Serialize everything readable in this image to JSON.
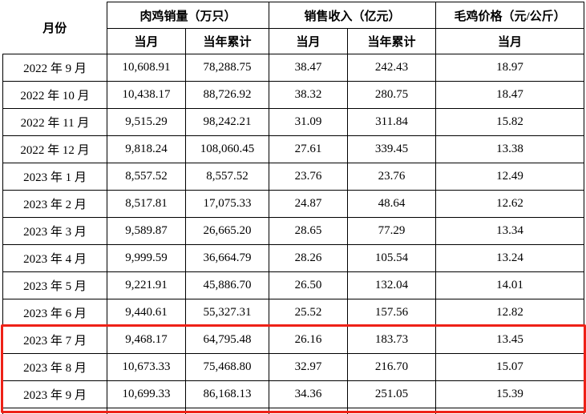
{
  "table": {
    "highlight_color": "#ee2117",
    "headers": {
      "month": "月份",
      "volume_group": "肉鸡销量（万只）",
      "revenue_group": "销售收入（亿元）",
      "price_group": "毛鸡价格（元/公斤）",
      "current_month": "当月",
      "ytd": "当年累计"
    },
    "rows": [
      {
        "month": "2022 年 9 月",
        "volume_month": "10,608.91",
        "volume_ytd": "78,288.75",
        "revenue_month": "38.47",
        "revenue_ytd": "242.43",
        "price": "18.97",
        "highlighted": false
      },
      {
        "month": "2022 年 10 月",
        "volume_month": "10,438.17",
        "volume_ytd": "88,726.92",
        "revenue_month": "38.32",
        "revenue_ytd": "280.75",
        "price": "18.47",
        "highlighted": false
      },
      {
        "month": "2022 年 11 月",
        "volume_month": "9,515.29",
        "volume_ytd": "98,242.21",
        "revenue_month": "31.09",
        "revenue_ytd": "311.84",
        "price": "15.82",
        "highlighted": false
      },
      {
        "month": "2022 年 12 月",
        "volume_month": "9,818.24",
        "volume_ytd": "108,060.45",
        "revenue_month": "27.61",
        "revenue_ytd": "339.45",
        "price": "13.38",
        "highlighted": false
      },
      {
        "month": "2023 年 1 月",
        "volume_month": "8,557.52",
        "volume_ytd": "8,557.52",
        "revenue_month": "23.76",
        "revenue_ytd": "23.76",
        "price": "12.49",
        "highlighted": false
      },
      {
        "month": "2023 年 2 月",
        "volume_month": "8,517.81",
        "volume_ytd": "17,075.33",
        "revenue_month": "24.87",
        "revenue_ytd": "48.64",
        "price": "12.62",
        "highlighted": false
      },
      {
        "month": "2023 年 3 月",
        "volume_month": "9,589.87",
        "volume_ytd": "26,665.20",
        "revenue_month": "28.65",
        "revenue_ytd": "77.29",
        "price": "13.34",
        "highlighted": false
      },
      {
        "month": "2023 年 4 月",
        "volume_month": "9,999.59",
        "volume_ytd": "36,664.79",
        "revenue_month": "28.26",
        "revenue_ytd": "105.54",
        "price": "13.24",
        "highlighted": false
      },
      {
        "month": "2023 年 5 月",
        "volume_month": "9,221.91",
        "volume_ytd": "45,886.70",
        "revenue_month": "26.50",
        "revenue_ytd": "132.04",
        "price": "14.01",
        "highlighted": false
      },
      {
        "month": "2023 年 6 月",
        "volume_month": "9,440.61",
        "volume_ytd": "55,327.31",
        "revenue_month": "25.52",
        "revenue_ytd": "157.56",
        "price": "12.82",
        "highlighted": false
      },
      {
        "month": "2023 年 7 月",
        "volume_month": "9,468.17",
        "volume_ytd": "64,795.48",
        "revenue_month": "26.16",
        "revenue_ytd": "183.73",
        "price": "13.45",
        "highlighted": true
      },
      {
        "month": "2023 年 8 月",
        "volume_month": "10,673.33",
        "volume_ytd": "75,468.80",
        "revenue_month": "32.97",
        "revenue_ytd": "216.70",
        "price": "15.07",
        "highlighted": true
      },
      {
        "month": "2023 年 9 月",
        "volume_month": "10,699.33",
        "volume_ytd": "86,168.13",
        "revenue_month": "34.36",
        "revenue_ytd": "251.05",
        "price": "15.39",
        "highlighted": true
      }
    ]
  }
}
